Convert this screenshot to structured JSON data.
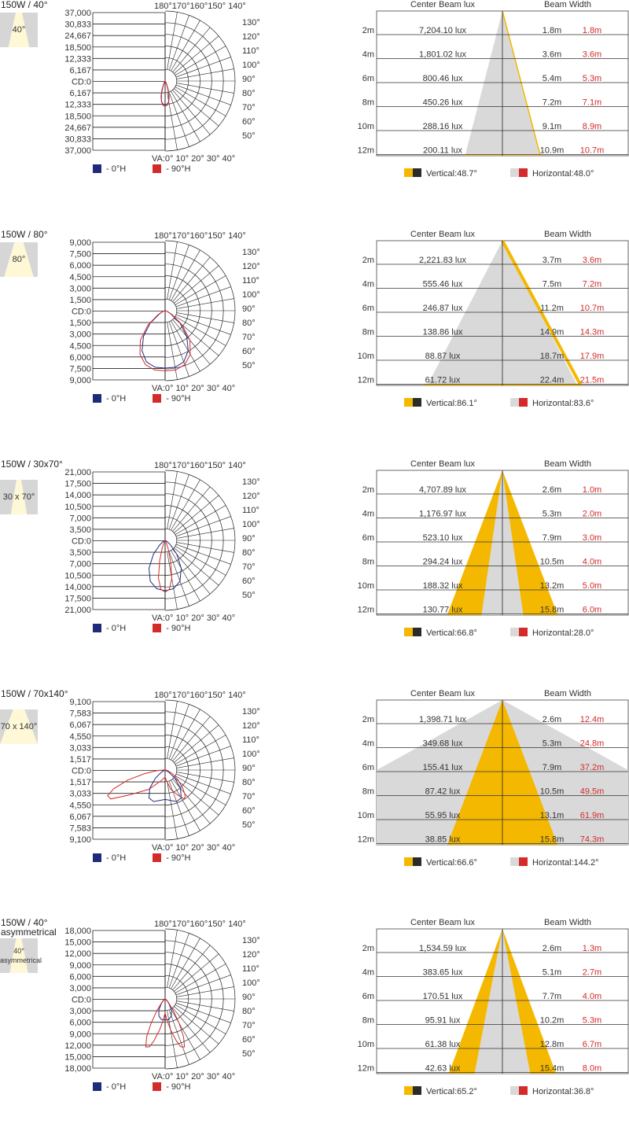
{
  "legend_polar": {
    "c0": "- 0°H",
    "c90": "- 90°H"
  },
  "beam_headers": {
    "lux": "Center Beam lux",
    "width": "Beam Width"
  },
  "colors": {
    "blue": "#1f2a7a",
    "red": "#d42a2a",
    "yellow": "#f5b800",
    "grey": "#d9d9d9",
    "dark": "#2b2b2b"
  },
  "chart_data": [
    {
      "type": "polar",
      "title": "150W / 40°",
      "thumb_label": "40°",
      "ticks": [
        "37,000",
        "30,833",
        "24,667",
        "18,500",
        "12,333",
        "6,167",
        "CD:0",
        "6,167",
        "12,333",
        "18,500",
        "24,667",
        "30,833",
        "37,000"
      ],
      "angles_right": [
        "130°",
        "120°",
        "110°",
        "100°",
        "90°",
        "80°",
        "70°",
        "60°",
        "50°"
      ],
      "top_angles": "180°170°160°150° 140°",
      "va_label": "VA:0° 10° 20° 30° 40°",
      "curve_0H": [
        [
          0,
          0.34
        ],
        [
          5,
          0.33
        ],
        [
          10,
          0.3
        ],
        [
          15,
          0.22
        ],
        [
          20,
          0.12
        ],
        [
          25,
          0.05
        ],
        [
          30,
          0.02
        ],
        [
          40,
          0
        ],
        [
          60,
          0
        ],
        [
          90,
          0
        ]
      ],
      "curve_90H": [
        [
          0,
          0.36
        ],
        [
          5,
          0.35
        ],
        [
          10,
          0.3
        ],
        [
          15,
          0.2
        ],
        [
          20,
          0.1
        ],
        [
          25,
          0.04
        ],
        [
          30,
          0.02
        ],
        [
          40,
          0
        ],
        [
          60,
          0
        ],
        [
          90,
          0
        ]
      ],
      "beam": {
        "rows": [
          {
            "d": "2m",
            "lux": "7,204.10 lux",
            "v": "1.8m",
            "h": "1.8m"
          },
          {
            "d": "4m",
            "lux": "1,801.02 lux",
            "v": "3.6m",
            "h": "3.6m"
          },
          {
            "d": "6m",
            "lux": "800.46 lux",
            "v": "5.4m",
            "h": "5.3m"
          },
          {
            "d": "8m",
            "lux": "450.26 lux",
            "v": "7.2m",
            "h": "7.1m"
          },
          {
            "d": "10m",
            "lux": "288.16 lux",
            "v": "9.1m",
            "h": "8.9m"
          },
          {
            "d": "12m",
            "lux": "200.11 lux",
            "v": "10.9m",
            "h": "10.7m"
          }
        ],
        "vertical_angle": 48.7,
        "horizontal_angle": 48.0,
        "vertical_label": "Vertical:48.7°",
        "horizontal_label": "Horizontal:48.0°"
      }
    },
    {
      "type": "polar",
      "title": "150W / 80°",
      "thumb_label": "80°",
      "ticks": [
        "9,000",
        "7,500",
        "6,000",
        "4,500",
        "3,000",
        "1,500",
        "CD:0",
        "1,500",
        "3,000",
        "4,500",
        "6,000",
        "7,500",
        "9,000"
      ],
      "angles_right": [
        "130°",
        "120°",
        "110°",
        "100°",
        "90°",
        "80°",
        "70°",
        "60°",
        "50°"
      ],
      "top_angles": "180°170°160°150° 140°",
      "va_label": "VA:0° 10° 20° 30° 40°",
      "curve_0H": [
        [
          0,
          0.82
        ],
        [
          10,
          0.82
        ],
        [
          20,
          0.78
        ],
        [
          30,
          0.66
        ],
        [
          40,
          0.48
        ],
        [
          50,
          0.28
        ],
        [
          60,
          0.1
        ],
        [
          70,
          0.04
        ],
        [
          90,
          0
        ]
      ],
      "curve_90H": [
        [
          0,
          0.86
        ],
        [
          10,
          0.86
        ],
        [
          20,
          0.82
        ],
        [
          30,
          0.72
        ],
        [
          40,
          0.55
        ],
        [
          50,
          0.32
        ],
        [
          60,
          0.12
        ],
        [
          70,
          0.04
        ],
        [
          90,
          0
        ]
      ],
      "beam": {
        "rows": [
          {
            "d": "2m",
            "lux": "2,221.83 lux",
            "v": "3.7m",
            "h": "3.6m"
          },
          {
            "d": "4m",
            "lux": "555.46 lux",
            "v": "7.5m",
            "h": "7.2m"
          },
          {
            "d": "6m",
            "lux": "246.87 lux",
            "v": "11.2m",
            "h": "10.7m"
          },
          {
            "d": "8m",
            "lux": "138.86 lux",
            "v": "14.9m",
            "h": "14.3m"
          },
          {
            "d": "10m",
            "lux": "88.87 lux",
            "v": "18.7m",
            "h": "17.9m"
          },
          {
            "d": "12m",
            "lux": "61.72 lux",
            "v": "22.4m",
            "h": "21.5m"
          }
        ],
        "vertical_angle": 86.1,
        "horizontal_angle": 83.6,
        "vertical_label": "Vertical:86.1°",
        "horizontal_label": "Horizontal:83.6°"
      }
    },
    {
      "type": "polar",
      "title": "150W / 30x70°",
      "thumb_label": "30 x 70°",
      "ticks": [
        "21,000",
        "17,500",
        "14,000",
        "10,500",
        "7,000",
        "3,500",
        "CD:0",
        "3,500",
        "7,000",
        "10,500",
        "14,000",
        "17,500",
        "21,000"
      ],
      "angles_right": [
        "130°",
        "120°",
        "110°",
        "100°",
        "90°",
        "80°",
        "70°",
        "60°",
        "50°"
      ],
      "top_angles": "180°170°160°150° 140°",
      "va_label": "VA:0° 10° 20° 30° 40°",
      "curve_0H": [
        [
          0,
          0.72
        ],
        [
          10,
          0.7
        ],
        [
          20,
          0.62
        ],
        [
          30,
          0.46
        ],
        [
          40,
          0.26
        ],
        [
          50,
          0.1
        ],
        [
          60,
          0.03
        ],
        [
          90,
          0
        ]
      ],
      "curve_90H": [
        [
          0,
          0.74
        ],
        [
          5,
          0.7
        ],
        [
          10,
          0.55
        ],
        [
          15,
          0.3
        ],
        [
          20,
          0.12
        ],
        [
          25,
          0.05
        ],
        [
          35,
          0.02
        ],
        [
          90,
          0
        ]
      ],
      "beam": {
        "rows": [
          {
            "d": "2m",
            "lux": "4,707.89 lux",
            "v": "2.6m",
            "h": "1.0m"
          },
          {
            "d": "4m",
            "lux": "1,176.97 lux",
            "v": "5.3m",
            "h": "2.0m"
          },
          {
            "d": "6m",
            "lux": "523.10 lux",
            "v": "7.9m",
            "h": "3.0m"
          },
          {
            "d": "8m",
            "lux": "294.24 lux",
            "v": "10.5m",
            "h": "4.0m"
          },
          {
            "d": "10m",
            "lux": "188.32 lux",
            "v": "13.2m",
            "h": "5.0m"
          },
          {
            "d": "12m",
            "lux": "130.77 lux",
            "v": "15.8m",
            "h": "6.0m"
          }
        ],
        "vertical_angle": 66.8,
        "horizontal_angle": 28.0,
        "vertical_label": "Vertical:66.8°",
        "horizontal_label": "Horizontal:28.0°"
      }
    },
    {
      "type": "polar",
      "title": "150W / 70x140°",
      "thumb_label": "70 x 140°",
      "ticks": [
        "9,100",
        "7,583",
        "6,067",
        "4,550",
        "3,033",
        "1,517",
        "CD:0",
        "1,517",
        "3,033",
        "4,550",
        "6,067",
        "7,583",
        "9,100"
      ],
      "angles_right": [
        "130°",
        "120°",
        "110°",
        "100°",
        "90°",
        "80°",
        "70°",
        "60°",
        "50°"
      ],
      "top_angles": "180°170°160°150° 140°",
      "va_label": "VA:0° 10° 20° 30° 40°",
      "curve_0H": [
        [
          0,
          0.42
        ],
        [
          10,
          0.44
        ],
        [
          20,
          0.48
        ],
        [
          30,
          0.46
        ],
        [
          40,
          0.34
        ],
        [
          50,
          0.18
        ],
        [
          60,
          0.06
        ],
        [
          90,
          0
        ]
      ],
      "curve_90H": [
        [
          0,
          0.1
        ],
        [
          20,
          0.16
        ],
        [
          40,
          0.36
        ],
        [
          55,
          0.62
        ],
        [
          62,
          0.88
        ],
        [
          66,
          0.9
        ],
        [
          70,
          0.78
        ],
        [
          75,
          0.55
        ],
        [
          80,
          0.3
        ],
        [
          85,
          0.12
        ],
        [
          90,
          0.03
        ]
      ],
      "beam": {
        "rows": [
          {
            "d": "2m",
            "lux": "1,398.71 lux",
            "v": "2.6m",
            "h": "12.4m"
          },
          {
            "d": "4m",
            "lux": "349.68 lux",
            "v": "5.3m",
            "h": "24.8m"
          },
          {
            "d": "6m",
            "lux": "155.41 lux",
            "v": "7.9m",
            "h": "37.2m"
          },
          {
            "d": "8m",
            "lux": "87.42 lux",
            "v": "10.5m",
            "h": "49.5m"
          },
          {
            "d": "10m",
            "lux": "55.95 lux",
            "v": "13.1m",
            "h": "61.9m"
          },
          {
            "d": "12m",
            "lux": "38.85 lux",
            "v": "15.8m",
            "h": "74.3m"
          }
        ],
        "vertical_angle": 66.6,
        "horizontal_angle": 144.2,
        "vertical_label": "Vertical:66.6°",
        "horizontal_label": "Horizontal:144.2°"
      }
    },
    {
      "type": "polar",
      "title": "150W / 40° asymmetrical",
      "thumb_label": "40° asymmetrical",
      "ticks": [
        "18,000",
        "15,000",
        "12,000",
        "9,000",
        "6,000",
        "3,000",
        "CD:0",
        "3,000",
        "6,000",
        "9,000",
        "12,000",
        "15,000",
        "18,000"
      ],
      "angles_right": [
        "130°",
        "120°",
        "110°",
        "100°",
        "90°",
        "80°",
        "70°",
        "60°",
        "50°"
      ],
      "top_angles": "180°170°160°150° 140°",
      "va_label": "VA:0° 10° 20° 30° 40°",
      "curve_0H": [
        [
          0,
          0.3
        ],
        [
          10,
          0.3
        ],
        [
          20,
          0.26
        ],
        [
          30,
          0.18
        ],
        [
          40,
          0.08
        ],
        [
          50,
          0.03
        ],
        [
          90,
          0
        ]
      ],
      "curve_90H": [
        [
          0,
          0.2
        ],
        [
          5,
          0.3
        ],
        [
          10,
          0.45
        ],
        [
          15,
          0.62
        ],
        [
          18,
          0.72
        ],
        [
          22,
          0.74
        ],
        [
          26,
          0.6
        ],
        [
          30,
          0.4
        ],
        [
          35,
          0.2
        ],
        [
          45,
          0.06
        ],
        [
          60,
          0.02
        ],
        [
          90,
          0
        ]
      ],
      "beam": {
        "rows": [
          {
            "d": "2m",
            "lux": "1,534.59 lux",
            "v": "2.6m",
            "h": "1.3m"
          },
          {
            "d": "4m",
            "lux": "383.65 lux",
            "v": "5.1m",
            "h": "2.7m"
          },
          {
            "d": "6m",
            "lux": "170.51 lux",
            "v": "7.7m",
            "h": "4.0m"
          },
          {
            "d": "8m",
            "lux": "95.91 lux",
            "v": "10.2m",
            "h": "5.3m"
          },
          {
            "d": "10m",
            "lux": "61.38 lux",
            "v": "12.8m",
            "h": "6.7m"
          },
          {
            "d": "12m",
            "lux": "42.63 lux",
            "v": "15.4m",
            "h": "8.0m"
          }
        ],
        "vertical_angle": 65.2,
        "horizontal_angle": 36.8,
        "vertical_label": "Vertical:65.2°",
        "horizontal_label": "Horizontal:36.8°"
      }
    }
  ]
}
